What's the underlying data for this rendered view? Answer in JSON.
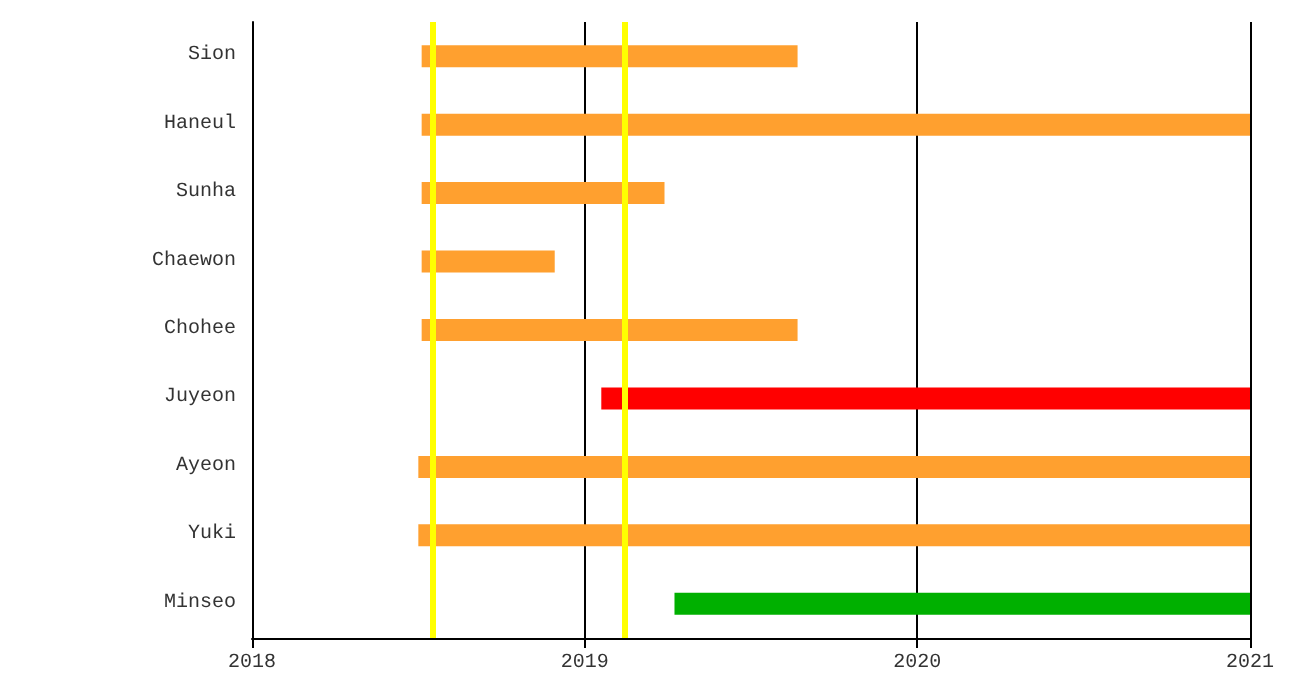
{
  "chart_data": {
    "type": "bar",
    "orientation": "horizontal",
    "categories": [
      "Sion",
      "Haneul",
      "Sunha",
      "Chaewon",
      "Chohee",
      "Juyeon",
      "Ayeon",
      "Yuki",
      "Minseo"
    ],
    "base": [
      2018.51,
      2018.51,
      2018.51,
      2018.51,
      2018.51,
      2019.05,
      2018.5,
      2018.5,
      2019.27
    ],
    "values": [
      1.13,
      2.49,
      0.73,
      0.4,
      1.13,
      1.95,
      2.5,
      2.5,
      1.73
    ],
    "colors": [
      "#ffa02f",
      "#ffa02f",
      "#ffa02f",
      "#ffa02f",
      "#ffa02f",
      "#ff0000",
      "#ffa02f",
      "#ffa02f",
      "#00b000"
    ],
    "xlim": [
      2018,
      2021
    ],
    "xticks": [
      2018,
      2019,
      2020,
      2021
    ],
    "grid": "x",
    "ref_lines": [
      {
        "axis": "x",
        "value": 2018.54,
        "color": "#ffff00"
      },
      {
        "axis": "x",
        "value": 2019.12,
        "color": "#ffff00"
      }
    ]
  }
}
